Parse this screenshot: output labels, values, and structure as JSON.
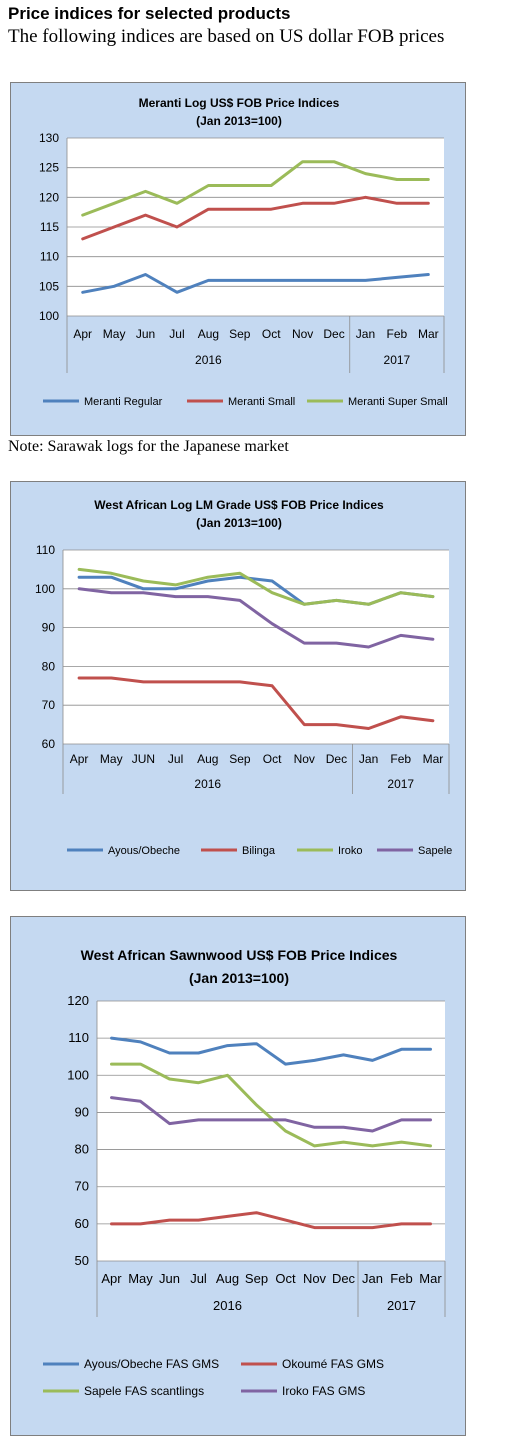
{
  "header": {
    "title": "Price indices for selected products",
    "subtitle": "The following indices are based on US dollar FOB prices"
  },
  "note": "Note: Sarawak logs for the Japanese market",
  "chart_data": [
    {
      "type": "line",
      "title": "Meranti Log US$ FOB Price Indices",
      "subtitle": "(Jan 2013=100)",
      "categories": [
        "Apr",
        "May",
        "Jun",
        "Jul",
        "Aug",
        "Sep",
        "Oct",
        "Nov",
        "Dec",
        "Jan",
        "Feb",
        "Mar"
      ],
      "year_groups": [
        {
          "label": "2016",
          "span": 9
        },
        {
          "label": "2017",
          "span": 3
        }
      ],
      "ylim": [
        100,
        130
      ],
      "yticks": [
        100,
        105,
        110,
        115,
        120,
        125,
        130
      ],
      "grid": true,
      "legend": "bottom",
      "series": [
        {
          "name": "Meranti Regular",
          "color": "#4f81bd",
          "values": [
            104,
            105,
            107,
            104,
            106,
            106,
            106,
            106,
            106,
            106,
            106.5,
            107
          ]
        },
        {
          "name": "Meranti Small",
          "color": "#c0504d",
          "values": [
            113,
            115,
            117,
            115,
            118,
            118,
            118,
            119,
            119,
            120,
            119,
            119
          ]
        },
        {
          "name": "Meranti Super Small",
          "color": "#9bbb59",
          "values": [
            117,
            119,
            121,
            119,
            122,
            122,
            122,
            126,
            126,
            124,
            123,
            123
          ]
        }
      ]
    },
    {
      "type": "line",
      "title": "West African Log LM Grade US$ FOB Price Indices",
      "subtitle": "(Jan 2013=100)",
      "categories": [
        "Apr",
        "May",
        "JUN",
        "Jul",
        "Aug",
        "Sep",
        "Oct",
        "Nov",
        "Dec",
        "Jan",
        "Feb",
        "Mar"
      ],
      "year_groups": [
        {
          "label": "2016",
          "span": 9
        },
        {
          "label": "2017",
          "span": 3
        }
      ],
      "ylim": [
        60,
        110
      ],
      "yticks": [
        60,
        70,
        80,
        90,
        100,
        110
      ],
      "grid": true,
      "legend": "bottom",
      "series": [
        {
          "name": "Ayous/Obeche",
          "color": "#4f81bd",
          "values": [
            103,
            103,
            100,
            100,
            102,
            103,
            102,
            96,
            97,
            96,
            99,
            98
          ]
        },
        {
          "name": "Bilinga",
          "color": "#c0504d",
          "values": [
            77,
            77,
            76,
            76,
            76,
            76,
            75,
            65,
            65,
            64,
            67,
            66
          ]
        },
        {
          "name": "Iroko",
          "color": "#9bbb59",
          "values": [
            105,
            104,
            102,
            101,
            103,
            104,
            99,
            96,
            97,
            96,
            99,
            98
          ]
        },
        {
          "name": "Sapele",
          "color": "#8064a2",
          "values": [
            100,
            99,
            99,
            98,
            98,
            97,
            91,
            86,
            86,
            85,
            88,
            87
          ]
        }
      ]
    },
    {
      "type": "line",
      "title": "West African Sawnwood US$ FOB Price Indices",
      "subtitle": "(Jan 2013=100)",
      "categories": [
        "Apr",
        "May",
        "Jun",
        "Jul",
        "Aug",
        "Sep",
        "Oct",
        "Nov",
        "Dec",
        "Jan",
        "Feb",
        "Mar"
      ],
      "year_groups": [
        {
          "label": "2016",
          "span": 9
        },
        {
          "label": "2017",
          "span": 3
        }
      ],
      "ylim": [
        50,
        120
      ],
      "yticks": [
        50,
        60,
        70,
        80,
        90,
        100,
        110,
        120
      ],
      "grid": true,
      "legend": "bottom",
      "series": [
        {
          "name": "Ayous/Obeche  FAS GMS",
          "color": "#4f81bd",
          "values": [
            110,
            109,
            106,
            106,
            108,
            108.5,
            103,
            104,
            105.5,
            104,
            107,
            107
          ]
        },
        {
          "name": "Okoumé  FAS GMS",
          "color": "#c0504d",
          "values": [
            60,
            60,
            61,
            61,
            62,
            63,
            61,
            59,
            59,
            59,
            60,
            60
          ]
        },
        {
          "name": "Sapele FAS scantlings",
          "color": "#9bbb59",
          "values": [
            103,
            103,
            99,
            98,
            100,
            92,
            85,
            81,
            82,
            81,
            82,
            81
          ]
        },
        {
          "name": "Iroko FAS GMS",
          "color": "#8064a2",
          "values": [
            94,
            93,
            87,
            88,
            88,
            88,
            88,
            86,
            86,
            85,
            88,
            88
          ]
        }
      ]
    }
  ]
}
